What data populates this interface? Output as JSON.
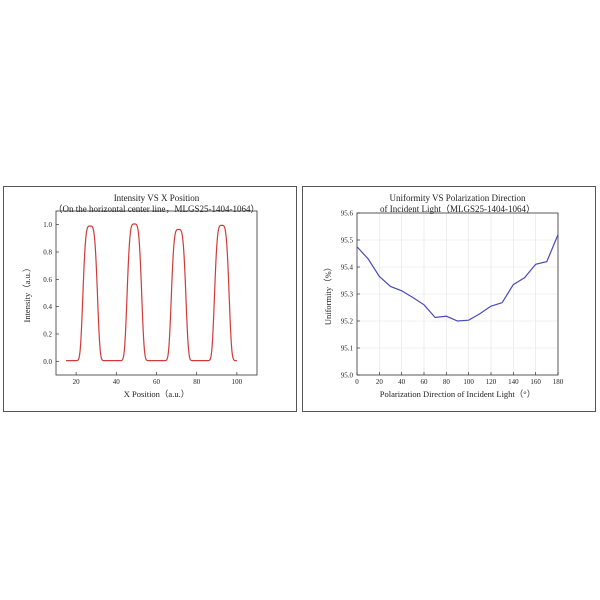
{
  "chart_data": [
    {
      "type": "line",
      "title": "Intensity VS X Position",
      "subtitle": "（On the horizontal center line，MLGS25-1404-1064）",
      "xlabel": "X Position（a.u.）",
      "ylabel": "Intensity（a.u.）",
      "xlim": [
        10,
        110
      ],
      "ylim": [
        -0.1,
        1.1
      ],
      "xticks": [
        20,
        40,
        60,
        80,
        100
      ],
      "yticks": [
        0.0,
        0.2,
        0.4,
        0.6,
        0.8,
        1.0
      ],
      "ytick_labels": [
        "0.0",
        "0.2",
        "0.4",
        "0.6",
        "0.8",
        "1.0"
      ],
      "x_range": [
        15,
        100
      ],
      "baseline": 0.005,
      "peaks": [
        {
          "center": 27,
          "amplitude": 0.985
        },
        {
          "center": 49,
          "amplitude": 1.0
        },
        {
          "center": 71,
          "amplitude": 0.96
        },
        {
          "center": 92.5,
          "amplitude": 0.99
        }
      ],
      "peak_half_width": 3.6,
      "color": "#d23a3a",
      "grid": false
    },
    {
      "type": "line",
      "title": "Uniformity VS Polarization Direction",
      "subtitle": "of Incident Light（MLGS25-1404-1064）",
      "xlabel": "Polarization Direction of Incident Light（°）",
      "ylabel": "Uniformity（%）",
      "xlim": [
        0,
        180
      ],
      "ylim": [
        95.0,
        95.6
      ],
      "xticks": [
        0,
        20,
        40,
        60,
        80,
        100,
        120,
        140,
        160,
        180
      ],
      "yticks": [
        95.0,
        95.1,
        95.2,
        95.3,
        95.4,
        95.5,
        95.6
      ],
      "ytick_labels": [
        "95.0",
        "95.1",
        "95.2",
        "95.3",
        "95.4",
        "95.5",
        "95.6"
      ],
      "x": [
        0,
        10,
        20,
        30,
        40,
        50,
        60,
        70,
        80,
        90,
        100,
        110,
        120,
        130,
        140,
        150,
        160,
        170,
        180
      ],
      "y": [
        95.475,
        95.43,
        95.365,
        95.328,
        95.312,
        95.287,
        95.26,
        95.213,
        95.218,
        95.2,
        95.203,
        95.227,
        95.255,
        95.268,
        95.335,
        95.36,
        95.41,
        95.42,
        95.52
      ],
      "color": "#4a4ab8",
      "grid": true
    }
  ]
}
